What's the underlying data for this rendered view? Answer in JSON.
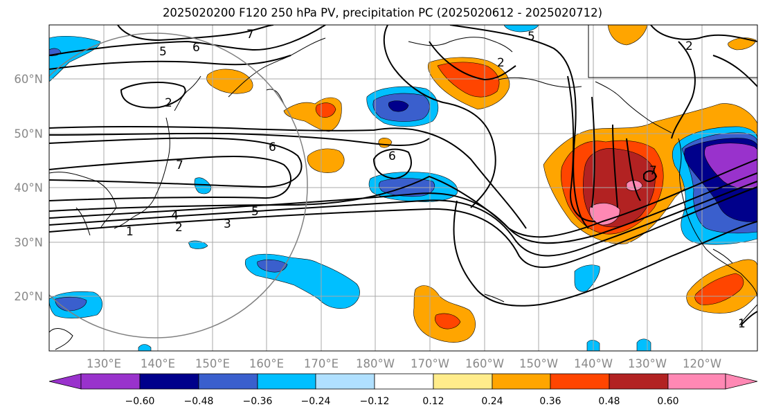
{
  "title": "2025020200 F120 250 hPa PV, precipitation PC (2025020612 - 2025020712)",
  "map": {
    "lat_labels": [
      "60°N",
      "50°N",
      "40°N",
      "30°N",
      "20°N"
    ],
    "lon_labels": [
      "130°E",
      "140°E",
      "150°E",
      "160°E",
      "170°E",
      "180°W",
      "170°W",
      "160°W",
      "150°W",
      "140°W",
      "130°W",
      "120°W"
    ],
    "contour_labels": [
      "7",
      "5",
      "6",
      "5",
      "2",
      "2",
      "6",
      "7",
      "6",
      "4",
      "5",
      "3",
      "2",
      "1",
      "2",
      "7",
      "1"
    ],
    "label_color": "#888888"
  },
  "colorbar": {
    "ticks": [
      "−0.60",
      "−0.48",
      "−0.36",
      "−0.24",
      "−0.12",
      "0.12",
      "0.24",
      "0.36",
      "0.48",
      "0.60"
    ],
    "colors": [
      "#9932cc",
      "#00008b",
      "#3a5fcd",
      "#00bfff",
      "#b0e0ff",
      "#ffffff",
      "#ffec8b",
      "#ffa500",
      "#ff4500",
      "#b22222",
      "#ff88b4"
    ]
  }
}
